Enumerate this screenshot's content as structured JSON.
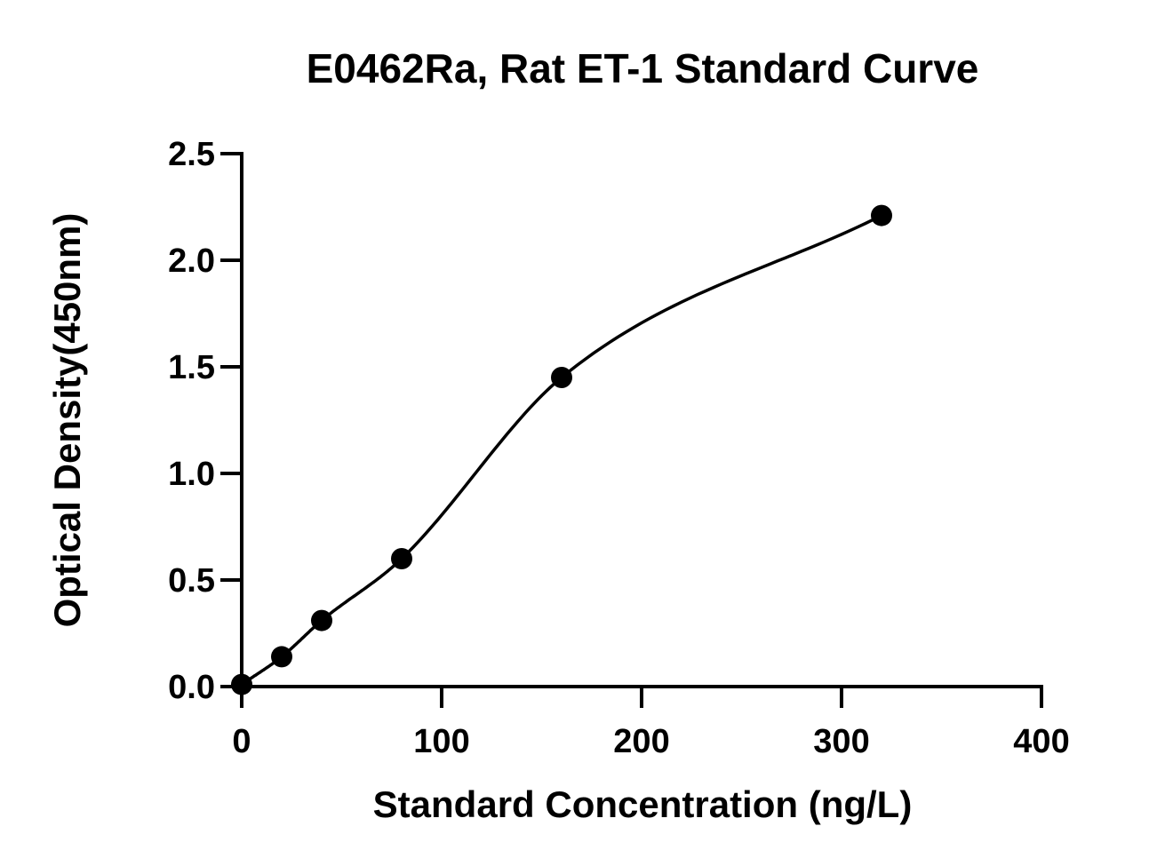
{
  "chart_data": {
    "type": "scatter",
    "title": "E0462Ra, Rat ET-1 Standard Curve",
    "xlabel": "Standard Concentration (ng/L)",
    "ylabel": "Optical Density(450nm)",
    "xlim": [
      0,
      400
    ],
    "ylim": [
      0,
      2.5
    ],
    "x_ticks": [
      "0",
      "100",
      "200",
      "300",
      "400"
    ],
    "y_ticks": [
      "0.0",
      "0.5",
      "1.0",
      "1.5",
      "2.0",
      "2.5"
    ],
    "grid": false,
    "legend": "none",
    "series": [
      {
        "x": [
          0,
          20,
          40,
          80,
          160,
          320
        ],
        "y": [
          0.01,
          0.14,
          0.31,
          0.6,
          1.45,
          2.21
        ]
      }
    ],
    "fit_curve": "four-parameter logistic (smooth line through points)"
  }
}
